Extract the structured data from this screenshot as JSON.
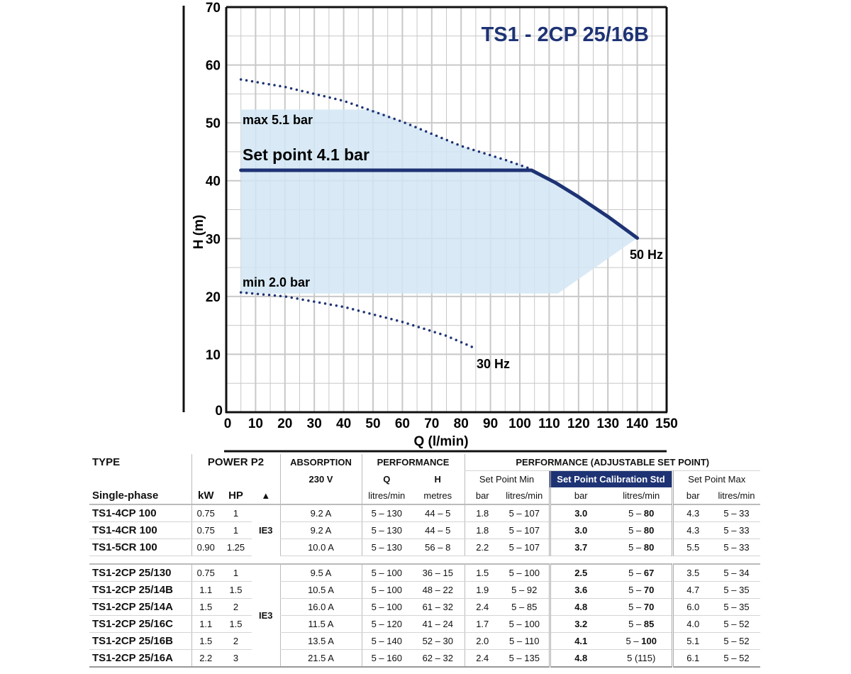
{
  "chart_data": {
    "type": "line",
    "title": "TS1 - 2CP 25/16B",
    "xlabel": "Q (l/min)",
    "ylabel": "H (m)",
    "xlim": [
      0,
      150
    ],
    "ylim": [
      0,
      70
    ],
    "x_ticks": [
      0,
      10,
      20,
      30,
      40,
      50,
      60,
      70,
      80,
      90,
      100,
      110,
      120,
      130,
      140,
      150
    ],
    "y_ticks": [
      0,
      10,
      20,
      30,
      40,
      50,
      60,
      70
    ],
    "grid": true,
    "colors": {
      "curve": "#1e3374",
      "region": "#d2e6f5",
      "grid": "#c8c8c8"
    },
    "series": [
      {
        "name": "50 Hz",
        "style": "dotted",
        "x": [
          5,
          20,
          40,
          60,
          80,
          95,
          104
        ],
        "y": [
          57.5,
          56.2,
          53.8,
          50.2,
          46.0,
          43.6,
          42.0
        ]
      },
      {
        "name": "30 Hz",
        "style": "dotted",
        "x": [
          5,
          20,
          40,
          60,
          75,
          85
        ],
        "y": [
          20.7,
          20.0,
          18.2,
          15.6,
          13.2,
          11.0
        ]
      },
      {
        "name": "Set point 4.1 bar",
        "style": "solid",
        "x": [
          5,
          104,
          112,
          120,
          130,
          140
        ],
        "y": [
          41.8,
          41.8,
          39.7,
          37.2,
          33.8,
          30.1
        ]
      }
    ],
    "region": {
      "name": "adjustable range",
      "x": [
        5,
        50,
        60,
        80,
        95,
        104,
        112,
        120,
        130,
        140,
        113,
        5
      ],
      "y": [
        52.3,
        52.3,
        50.2,
        46.0,
        43.6,
        42.0,
        39.7,
        37.2,
        33.8,
        30.1,
        20.5,
        20.5
      ]
    },
    "annotations": {
      "max": "max 5.1 bar",
      "setpoint": "Set point 4.1 bar",
      "min": "min 2.0 bar",
      "hz50": "50 Hz",
      "hz30": "30 Hz"
    }
  },
  "table": {
    "headers": {
      "type": "TYPE",
      "single_phase": "Single-phase",
      "power": "POWER P2",
      "kw": "kW",
      "hp": "HP",
      "triangle": "▲",
      "absorption": "ABSORPTION",
      "voltage": "230 V",
      "performance": "PERFORMANCE",
      "q": "Q",
      "h": "H",
      "q_unit": "litres/min",
      "h_unit": "metres",
      "adjustable": "PERFORMANCE (ADJUSTABLE SET POINT)",
      "sp_min": "Set Point Min",
      "sp_std": "Set Point Calibration Std",
      "sp_max": "Set Point Max",
      "bar": "bar",
      "lpm": "litres/min"
    },
    "efficiency_class": "IE3",
    "group1": [
      {
        "type": "TS1-4CP 100",
        "kw": "0.75",
        "hp": "1",
        "abs": "9.2 A",
        "q": "5 – 130",
        "h": "44 – 5",
        "min_bar": "1.8",
        "min_lpm": "5 – 107",
        "std_bar": "3.0",
        "std_lpm_pre": "5 – ",
        "std_lpm_bold": "80",
        "max_bar": "4.3",
        "max_lpm": "5 – 33"
      },
      {
        "type": "TS1-4CR 100",
        "kw": "0.75",
        "hp": "1",
        "abs": "9.2 A",
        "q": "5 – 130",
        "h": "44 – 5",
        "min_bar": "1.8",
        "min_lpm": "5 – 107",
        "std_bar": "3.0",
        "std_lpm_pre": "5 – ",
        "std_lpm_bold": "80",
        "max_bar": "4.3",
        "max_lpm": "5 – 33"
      },
      {
        "type": "TS1-5CR 100",
        "kw": "0.90",
        "hp": "1.25",
        "abs": "10.0 A",
        "q": "5 – 130",
        "h": "56 – 8",
        "min_bar": "2.2",
        "min_lpm": "5 – 107",
        "std_bar": "3.7",
        "std_lpm_pre": "5 – ",
        "std_lpm_bold": "80",
        "max_bar": "5.5",
        "max_lpm": "5 – 33"
      }
    ],
    "group2": [
      {
        "type": "TS1-2CP 25/130",
        "kw": "0.75",
        "hp": "1",
        "abs": "9.5 A",
        "q": "5 – 100",
        "h": "36 – 15",
        "min_bar": "1.5",
        "min_lpm": "5 – 100",
        "std_bar": "2.5",
        "std_lpm_pre": "5 – ",
        "std_lpm_bold": "67",
        "max_bar": "3.5",
        "max_lpm": "5 – 34"
      },
      {
        "type": "TS1-2CP 25/14B",
        "kw": "1.1",
        "hp": "1.5",
        "abs": "10.5 A",
        "q": "5 – 100",
        "h": "48 – 22",
        "min_bar": "1.9",
        "min_lpm": "5 – 92",
        "std_bar": "3.6",
        "std_lpm_pre": "5 – ",
        "std_lpm_bold": "70",
        "max_bar": "4.7",
        "max_lpm": "5 – 35"
      },
      {
        "type": "TS1-2CP 25/14A",
        "kw": "1.5",
        "hp": "2",
        "abs": "16.0 A",
        "q": "5 – 100",
        "h": "61 – 32",
        "min_bar": "2.4",
        "min_lpm": "5 – 85",
        "std_bar": "4.8",
        "std_lpm_pre": "5 – ",
        "std_lpm_bold": "70",
        "max_bar": "6.0",
        "max_lpm": "5 – 35"
      },
      {
        "type": "TS1-2CP 25/16C",
        "kw": "1.1",
        "hp": "1.5",
        "abs": "11.5 A",
        "q": "5 – 120",
        "h": "41 – 24",
        "min_bar": "1.7",
        "min_lpm": "5 – 100",
        "std_bar": "3.2",
        "std_lpm_pre": "5 – ",
        "std_lpm_bold": "85",
        "max_bar": "4.0",
        "max_lpm": "5 – 52"
      },
      {
        "type": "TS1-2CP 25/16B",
        "kw": "1.5",
        "hp": "2",
        "abs": "13.5 A",
        "q": "5 – 140",
        "h": "52 – 30",
        "min_bar": "2.0",
        "min_lpm": "5 – 110",
        "std_bar": "4.1",
        "std_lpm_pre": "5 – ",
        "std_lpm_bold": "100",
        "max_bar": "5.1",
        "max_lpm": "5 – 52"
      },
      {
        "type": "TS1-2CP 25/16A",
        "kw": "2.2",
        "hp": "3",
        "abs": "21.5 A",
        "q": "5 – 160",
        "h": "62 – 32",
        "min_bar": "2.4",
        "min_lpm": "5 – 135",
        "std_bar": "4.8",
        "std_lpm_pre": "5 (115)",
        "std_lpm_bold": "",
        "max_bar": "6.1",
        "max_lpm": "5 – 52"
      }
    ]
  }
}
